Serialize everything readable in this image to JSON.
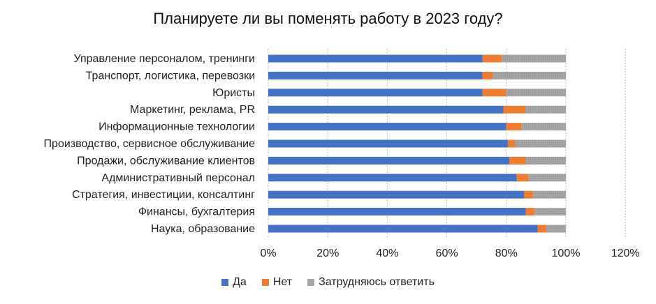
{
  "chart_data": {
    "type": "bar",
    "orientation": "horizontal",
    "stacked": "percent",
    "title": "Планируете ли вы поменять работу в 2023 году?",
    "categories": [
      "Управление персоналом, тренинги",
      "Транспорт, логистика, перевозки",
      "Юристы",
      "Маркетинг, реклама, PR",
      "Информационные технологии",
      "Производство, сервисное обслуживание",
      "Продажи, обслуживание клиентов",
      "Административный персонал",
      "Стратегия, инвестиции, консалтинг",
      "Финансы, бухгалтерия",
      "Наука, образование"
    ],
    "series": [
      {
        "name": "Да",
        "color": "#4472C4",
        "values": [
          72,
          72,
          72,
          79,
          80,
          80.5,
          81,
          83.5,
          86,
          86.5,
          90.5
        ]
      },
      {
        "name": "Нет",
        "color": "#ED7D31",
        "values": [
          6.5,
          3.5,
          8,
          7.5,
          5,
          2.5,
          5.5,
          4,
          3,
          3,
          3
        ]
      },
      {
        "name": "Затрудняюсь ответить",
        "color": "#A5A5A5",
        "values": [
          21.5,
          24.5,
          20,
          13.5,
          15,
          17,
          13.5,
          12.5,
          11,
          10.5,
          6.5
        ]
      }
    ],
    "xlim": [
      0,
      120
    ],
    "xticks": [
      "0%",
      "20%",
      "40%",
      "60%",
      "80%",
      "100%",
      "120%"
    ],
    "grid": true,
    "legend_position": "bottom"
  }
}
